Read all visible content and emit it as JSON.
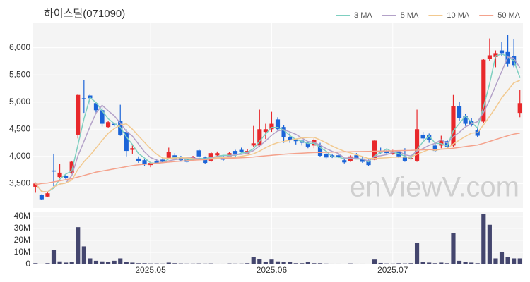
{
  "chart_data": {
    "type": "candlestick",
    "title": "하이스틸(071090)",
    "watermark": "enViewV.com",
    "up_color": "#e8282b",
    "down_color": "#1b64d8",
    "grid": true,
    "legend": "top-right",
    "xlim": [
      -0.5,
      80.5
    ],
    "xticks": [
      {
        "value": 19,
        "label": "2025.05"
      },
      {
        "value": 39,
        "label": "2025.06"
      },
      {
        "value": 59,
        "label": "2025.07"
      }
    ],
    "ylim": [
      3050,
      6450
    ],
    "yticks": [
      {
        "value": 3500,
        "label": "3,500"
      },
      {
        "value": 4000,
        "label": "4,000"
      },
      {
        "value": 4500,
        "label": "4,500"
      },
      {
        "value": 5000,
        "label": "5,000"
      },
      {
        "value": 5500,
        "label": "5,500"
      },
      {
        "value": 6000,
        "label": "6,000"
      }
    ],
    "open": [
      3440,
      3290,
      3260,
      3740,
      3620,
      3640,
      3700,
      4400,
      5070,
      5120,
      4980,
      4850,
      4540,
      4600,
      4650,
      4450,
      4120,
      3960,
      3930,
      3840,
      3920,
      3940,
      3960,
      4020,
      3990,
      3960,
      3960,
      4110,
      3980,
      3920,
      4020,
      4000,
      3980,
      4100,
      4120,
      4050,
      4200,
      4200,
      4450,
      4500,
      4680,
      4540,
      4350,
      4300,
      4290,
      4250,
      4200,
      4200,
      4050,
      4020,
      4020,
      3930,
      3910,
      4020,
      3960,
      3920,
      3940,
      4100,
      4100,
      4050,
      4080,
      3990,
      3950,
      3920,
      4400,
      4400,
      4200,
      4200,
      4280,
      4200,
      4920,
      4750,
      4650,
      4480,
      4640,
      5800,
      5830,
      5950,
      5920,
      5850,
      4800
    ],
    "high": [
      3520,
      3300,
      3340,
      4050,
      3860,
      3680,
      3920,
      5140,
      5400,
      5150,
      5000,
      4900,
      4650,
      4620,
      4950,
      4500,
      4200,
      4000,
      3950,
      3900,
      3950,
      3970,
      4160,
      4060,
      4010,
      3980,
      4010,
      4130,
      4000,
      4080,
      4090,
      4030,
      4080,
      4120,
      4160,
      4130,
      4560,
      4860,
      4600,
      4820,
      4720,
      4580,
      4420,
      4320,
      4310,
      4280,
      4330,
      4250,
      4080,
      4050,
      4040,
      3960,
      4020,
      4060,
      3990,
      3940,
      4300,
      4160,
      4120,
      4120,
      4100,
      4150,
      4000,
      4860,
      4450,
      4420,
      4250,
      4380,
      4300,
      5130,
      5000,
      4780,
      4700,
      4530,
      5790,
      6170,
      5950,
      6100,
      6240,
      6160,
      5220
    ],
    "low": [
      3330,
      3200,
      3250,
      3450,
      3600,
      3560,
      3680,
      4330,
      4800,
      4950,
      4800,
      4550,
      4520,
      4550,
      4380,
      4000,
      4050,
      3880,
      3820,
      3800,
      3860,
      3880,
      3950,
      3940,
      3910,
      3880,
      3940,
      3980,
      3860,
      3900,
      4000,
      3920,
      3960,
      3980,
      4060,
      4040,
      4180,
      4180,
      4320,
      4450,
      4480,
      4250,
      4250,
      4220,
      4200,
      4150,
      4150,
      3990,
      3960,
      3970,
      3970,
      3870,
      3900,
      3950,
      3880,
      3820,
      3930,
      4050,
      4050,
      4030,
      3970,
      3900,
      3930,
      3900,
      4300,
      4250,
      4080,
      4150,
      4140,
      4180,
      4650,
      4560,
      4550,
      4350,
      4620,
      5750,
      5640,
      5850,
      5650,
      5640,
      4720
    ],
    "close": [
      3500,
      3210,
      3320,
      3720,
      3700,
      3600,
      3900,
      5130,
      5050,
      5070,
      4850,
      4600,
      4630,
      4580,
      4400,
      4100,
      4150,
      3910,
      3850,
      3880,
      3880,
      3900,
      4080,
      3960,
      3930,
      3900,
      3990,
      4000,
      3880,
      4060,
      4060,
      3940,
      4060,
      4050,
      4080,
      4100,
      4240,
      4500,
      4500,
      4600,
      4500,
      4350,
      4300,
      4280,
      4250,
      4180,
      4300,
      4010,
      3980,
      3990,
      3990,
      3890,
      4000,
      3960,
      3900,
      3840,
      4290,
      4070,
      4060,
      4090,
      4000,
      3920,
      3970,
      4500,
      4330,
      4300,
      4100,
      4300,
      4180,
      4930,
      4700,
      4600,
      4580,
      4380,
      5780,
      5860,
      5900,
      5900,
      5700,
      5680,
      4980
    ],
    "series": [
      {
        "name": "3 MA",
        "color": "#7ecfc0",
        "values": [
          3500,
          3355,
          3343,
          3417,
          3580,
          3673,
          3733,
          4210,
          4693,
          5083,
          4990,
          4840,
          4693,
          4603,
          4537,
          4360,
          4217,
          4053,
          3970,
          3880,
          3870,
          3887,
          3953,
          3980,
          3990,
          3930,
          3940,
          3963,
          3957,
          3980,
          4000,
          4020,
          4020,
          4017,
          4063,
          4077,
          4140,
          4280,
          4413,
          4533,
          4533,
          4483,
          4383,
          4310,
          4277,
          4237,
          4243,
          4163,
          4097,
          3993,
          3987,
          3957,
          3960,
          3950,
          3953,
          3900,
          4010,
          4067,
          4140,
          4073,
          4050,
          4003,
          3963,
          4130,
          4267,
          4377,
          4243,
          4233,
          4193,
          4470,
          4603,
          4743,
          4627,
          4520,
          4913,
          5340,
          5847,
          5887,
          5833,
          5760,
          5453
        ]
      },
      {
        "name": "5 MA",
        "color": "#b3a1c8",
        "values": [
          3500,
          3355,
          3343,
          3438,
          3490,
          3510,
          3648,
          4010,
          4276,
          4550,
          4800,
          4940,
          4840,
          4746,
          4612,
          4462,
          4372,
          4228,
          4082,
          3978,
          3934,
          3884,
          3918,
          3940,
          3950,
          3974,
          3972,
          3956,
          3940,
          3966,
          3998,
          3988,
          4000,
          4034,
          4038,
          4058,
          4106,
          4194,
          4284,
          4388,
          4468,
          4490,
          4450,
          4406,
          4336,
          4272,
          4262,
          4204,
          4144,
          4092,
          4054,
          3972,
          3970,
          3966,
          3948,
          3918,
          3998,
          4012,
          4032,
          4070,
          4102,
          4028,
          4008,
          4096,
          4144,
          4204,
          4240,
          4306,
          4242,
          4362,
          4442,
          4542,
          4598,
          4638,
          4808,
          5040,
          5300,
          5564,
          5828,
          5808,
          5632
        ]
      },
      {
        "name": "10 MA",
        "color": "#f2c98f",
        "values": [
          3500,
          3355,
          3343,
          3438,
          3490,
          3510,
          3564,
          3760,
          3903,
          4020,
          4155,
          4293,
          4424,
          4510,
          4578,
          4598,
          4500,
          4378,
          4258,
          4139,
          4042,
          3972,
          3965,
          3970,
          3973,
          3973,
          3957,
          3937,
          3940,
          3958,
          3976,
          3980,
          3978,
          3987,
          4002,
          4022,
          4047,
          4097,
          4159,
          4213,
          4253,
          4274,
          4298,
          4321,
          4338,
          4346,
          4352,
          4303,
          4251,
          4190,
          4139,
          4093,
          4063,
          4031,
          3996,
          3962,
          3961,
          3967,
          3975,
          3985,
          3986,
          3989,
          3986,
          4040,
          4083,
          4129,
          4110,
          4133,
          4145,
          4229,
          4299,
          4367,
          4428,
          4436,
          4581,
          4737,
          4897,
          5077,
          5216,
          5354,
          5399
        ]
      },
      {
        "name": "50 MA",
        "color": "#f4a28c",
        "values": [
          3480,
          3500,
          3510,
          3530,
          3550,
          3570,
          3590,
          3620,
          3650,
          3680,
          3710,
          3730,
          3750,
          3770,
          3790,
          3810,
          3830,
          3845,
          3855,
          3865,
          3875,
          3885,
          3895,
          3905,
          3912,
          3920,
          3928,
          3935,
          3942,
          3950,
          3955,
          3960,
          3965,
          3970,
          3975,
          3980,
          3990,
          4000,
          4010,
          4020,
          4030,
          4040,
          4048,
          4055,
          4060,
          4065,
          4070,
          4072,
          4075,
          4078,
          4080,
          4083,
          4086,
          4088,
          4090,
          4092,
          4095,
          4098,
          4100,
          4103,
          4106,
          4108,
          4110,
          4115,
          4120,
          4125,
          4128,
          4132,
          4136,
          4150,
          4165,
          4180,
          4195,
          4210,
          4240,
          4275,
          4310,
          4345,
          4380,
          4410,
          4430
        ]
      }
    ],
    "volume": {
      "color": "#44466e",
      "ylim": [
        0,
        44
      ],
      "yticks": [
        0,
        {
          "value": 10,
          "label": "10M"
        },
        {
          "value": 20,
          "label": "20M"
        },
        {
          "value": 30,
          "label": "30M"
        },
        {
          "value": 40,
          "label": "40M"
        }
      ],
      "values": [
        1,
        0.5,
        1,
        12,
        2.5,
        1.5,
        2,
        31,
        15,
        5,
        3,
        2.5,
        2,
        3,
        5,
        2,
        1.5,
        1,
        1,
        0.8,
        0.8,
        0.7,
        1.5,
        1,
        0.8,
        0.7,
        0.7,
        0.8,
        0.7,
        0.8,
        0.6,
        0.6,
        0.8,
        0.7,
        0.7,
        1,
        6,
        4.5,
        2,
        4,
        2.5,
        2,
        2,
        1,
        1,
        2,
        1,
        1,
        0.7,
        0.6,
        0.6,
        0.5,
        0.8,
        0.6,
        0.6,
        0.5,
        4,
        1.2,
        0.8,
        0.7,
        1,
        0.8,
        1,
        18,
        2,
        1.5,
        1,
        1.5,
        1,
        26,
        3,
        2,
        1.5,
        1,
        42,
        33,
        5,
        10,
        6,
        5,
        5
      ]
    }
  }
}
